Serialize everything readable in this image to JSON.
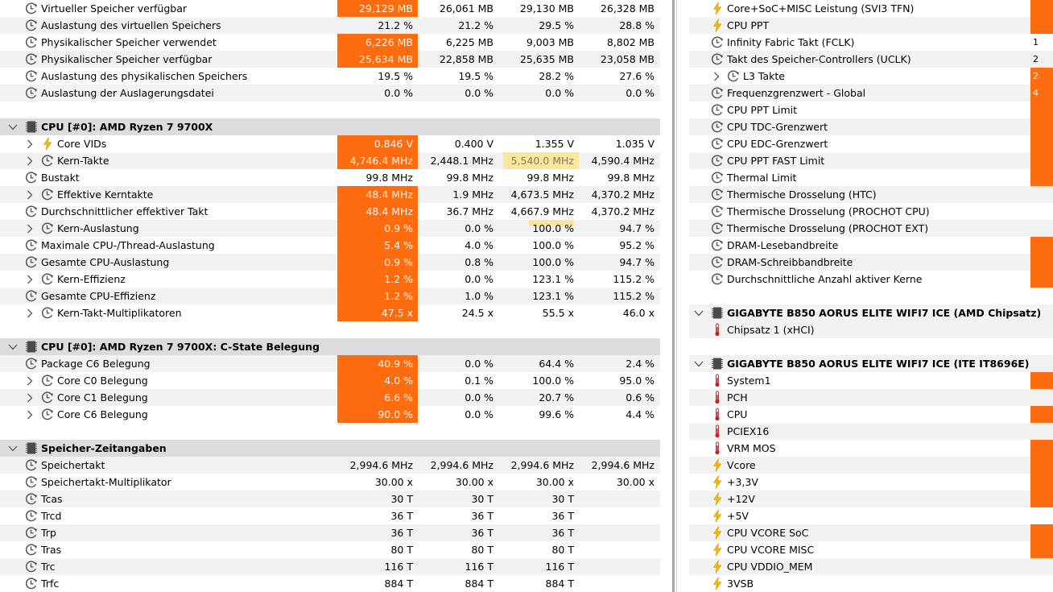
{
  "left": {
    "rows": [
      {
        "type": "row",
        "icon": "clock",
        "label": "Virtueller Speicher verfügbar",
        "vals": [
          "29,129 MB",
          "26,061 MB",
          "29,130 MB",
          "26,328 MB"
        ],
        "orange": true
      },
      {
        "type": "row",
        "icon": "clock",
        "label": "Auslastung des virtuellen Speichers",
        "vals": [
          "21.2 %",
          "21.2 %",
          "29.5 %",
          "28.8 %"
        ],
        "orange": false
      },
      {
        "type": "row",
        "icon": "clock",
        "label": "Physikalischer Speicher verwendet",
        "vals": [
          "6,226 MB",
          "6,225 MB",
          "9,003 MB",
          "8,802 MB"
        ],
        "orange": true
      },
      {
        "type": "row",
        "icon": "clock",
        "label": "Physikalischer Speicher verfügbar",
        "vals": [
          "25,634 MB",
          "22,858 MB",
          "25,635 MB",
          "23,058 MB"
        ],
        "orange": true
      },
      {
        "type": "row",
        "icon": "clock",
        "label": "Auslastung des physikalischen Speichers",
        "vals": [
          "19.5 %",
          "19.5 %",
          "28.2 %",
          "27.6 %"
        ],
        "orange": false
      },
      {
        "type": "row",
        "icon": "clock",
        "label": "Auslastung der Auslagerungsdatei",
        "vals": [
          "0.0 %",
          "0.0 %",
          "0.0 %",
          "0.0 %"
        ],
        "orange": false
      },
      {
        "type": "blank"
      },
      {
        "type": "header",
        "label": "CPU [#0]: AMD Ryzen 7 9700X"
      },
      {
        "type": "row",
        "expand": true,
        "icon": "bolt",
        "label": "Core VIDs",
        "vals": [
          "0.846 V",
          "0.400 V",
          "1.355 V",
          "1.035 V"
        ],
        "orange": true
      },
      {
        "type": "row",
        "expand": true,
        "icon": "clock",
        "label": "Kern-Takte",
        "vals": [
          "4,746.4 MHz",
          "2,448.1 MHz",
          "5,540.0 MHz",
          "4,590.4 MHz"
        ],
        "orange": true,
        "hl": "full"
      },
      {
        "type": "row",
        "icon": "clock",
        "label": "Bustakt",
        "vals": [
          "99.8 MHz",
          "99.8 MHz",
          "99.8 MHz",
          "99.8 MHz"
        ],
        "orange": false
      },
      {
        "type": "row",
        "expand": true,
        "icon": "clock",
        "label": "Effektive Kerntakte",
        "vals": [
          "48.4 MHz",
          "1.9 MHz",
          "4,673.5 MHz",
          "4,370.2 MHz"
        ],
        "orange": true
      },
      {
        "type": "row",
        "icon": "clock",
        "label": "Durchschnittlicher effektiver Takt",
        "vals": [
          "48.4 MHz",
          "36.7 MHz",
          "4,667.9 MHz",
          "4,370.2 MHz"
        ],
        "orange": true
      },
      {
        "type": "row",
        "expand": true,
        "icon": "clock",
        "label": "Kern-Auslastung",
        "vals": [
          "0.9 %",
          "0.0 %",
          "100.0 %",
          "94.7 %"
        ],
        "orange": true,
        "hl": "under"
      },
      {
        "type": "row",
        "icon": "clock",
        "label": "Maximale CPU-/Thread-Auslastung",
        "vals": [
          "5.4 %",
          "4.0 %",
          "100.0 %",
          "95.2 %"
        ],
        "orange": true
      },
      {
        "type": "row",
        "icon": "clock",
        "label": "Gesamte CPU-Auslastung",
        "vals": [
          "0.9 %",
          "0.8 %",
          "100.0 %",
          "94.7 %"
        ],
        "orange": true
      },
      {
        "type": "row",
        "expand": true,
        "icon": "clock",
        "label": "Kern-Effizienz",
        "vals": [
          "1.2 %",
          "0.0 %",
          "123.1 %",
          "115.2 %"
        ],
        "orange": true
      },
      {
        "type": "row",
        "icon": "clock",
        "label": "Gesamte CPU-Effizienz",
        "vals": [
          "1.2 %",
          "1.0 %",
          "123.1 %",
          "115.2 %"
        ],
        "orange": true
      },
      {
        "type": "row",
        "expand": true,
        "icon": "clock",
        "label": "Kern-Takt-Multiplikatoren",
        "vals": [
          "47.5 x",
          "24.5 x",
          "55.5 x",
          "46.0 x"
        ],
        "orange": true
      },
      {
        "type": "blank"
      },
      {
        "type": "header",
        "label": "CPU [#0]: AMD Ryzen 7 9700X: C-State Belegung"
      },
      {
        "type": "row",
        "icon": "clock",
        "label": "Package C6 Belegung",
        "vals": [
          "40.9 %",
          "0.0 %",
          "64.4 %",
          "2.4 %"
        ],
        "orange": true
      },
      {
        "type": "row",
        "expand": true,
        "icon": "clock",
        "label": "Core C0 Belegung",
        "vals": [
          "4.0 %",
          "0.1 %",
          "100.0 %",
          "95.0 %"
        ],
        "orange": true
      },
      {
        "type": "row",
        "expand": true,
        "icon": "clock",
        "label": "Core C1 Belegung",
        "vals": [
          "6.6 %",
          "0.0 %",
          "20.7 %",
          "0.6 %"
        ],
        "orange": true
      },
      {
        "type": "row",
        "expand": true,
        "icon": "clock",
        "label": "Core C6 Belegung",
        "vals": [
          "90.0 %",
          "0.0 %",
          "99.6 %",
          "4.4 %"
        ],
        "orange": true
      },
      {
        "type": "blank"
      },
      {
        "type": "header",
        "label": "Speicher-Zeitangaben"
      },
      {
        "type": "row",
        "icon": "clock",
        "label": "Speichertakt",
        "vals": [
          "2,994.6 MHz",
          "2,994.6 MHz",
          "2,994.6 MHz",
          "2,994.6 MHz"
        ],
        "orange": false
      },
      {
        "type": "row",
        "icon": "clock",
        "label": "Speichertakt-Multiplikator",
        "vals": [
          "30.00 x",
          "30.00 x",
          "30.00 x",
          "30.00 x"
        ],
        "orange": false
      },
      {
        "type": "row",
        "icon": "clock",
        "label": "Tcas",
        "vals": [
          "30 T",
          "30 T",
          "30 T",
          ""
        ],
        "orange": false
      },
      {
        "type": "row",
        "icon": "clock",
        "label": "Trcd",
        "vals": [
          "36 T",
          "36 T",
          "36 T",
          ""
        ],
        "orange": false
      },
      {
        "type": "row",
        "icon": "clock",
        "label": "Trp",
        "vals": [
          "36 T",
          "36 T",
          "36 T",
          ""
        ],
        "orange": false
      },
      {
        "type": "row",
        "icon": "clock",
        "label": "Tras",
        "vals": [
          "80 T",
          "80 T",
          "80 T",
          ""
        ],
        "orange": false
      },
      {
        "type": "row",
        "icon": "clock",
        "label": "Trc",
        "vals": [
          "116 T",
          "116 T",
          "116 T",
          ""
        ],
        "orange": false
      },
      {
        "type": "row",
        "icon": "clock",
        "label": "Trfc",
        "vals": [
          "884 T",
          "884 T",
          "884 T",
          ""
        ],
        "orange": false
      }
    ]
  },
  "right": {
    "rows": [
      {
        "type": "row",
        "icon": "bolt",
        "label": "Core+SoC+MISC Leistung (SVI3 TFN)",
        "val": "",
        "orange": true
      },
      {
        "type": "row",
        "icon": "bolt",
        "label": "CPU PPT",
        "val": "",
        "orange": true
      },
      {
        "type": "row",
        "icon": "clock",
        "label": "Infinity Fabric Takt (FCLK)",
        "val": "1",
        "orange": false
      },
      {
        "type": "row",
        "icon": "clock",
        "label": "Takt des Speicher-Controllers (UCLK)",
        "val": "2",
        "orange": false
      },
      {
        "type": "row",
        "expand": true,
        "icon": "clock",
        "label": "L3 Takte",
        "val": "2",
        "orange": true
      },
      {
        "type": "row",
        "icon": "clock",
        "label": "Frequenzgrenzwert - Global",
        "val": "4",
        "orange": true
      },
      {
        "type": "row",
        "icon": "clock",
        "label": "CPU PPT Limit",
        "val": "",
        "orange": true
      },
      {
        "type": "row",
        "icon": "clock",
        "label": "CPU TDC-Grenzwert",
        "val": "",
        "orange": true
      },
      {
        "type": "row",
        "icon": "clock",
        "label": "CPU EDC-Grenzwert",
        "val": "",
        "orange": true
      },
      {
        "type": "row",
        "icon": "clock",
        "label": "CPU PPT FAST Limit",
        "val": "",
        "orange": true
      },
      {
        "type": "row",
        "icon": "clock",
        "label": "Thermal Limit",
        "val": "",
        "orange": true
      },
      {
        "type": "row",
        "icon": "clock",
        "label": "Thermische Drosselung (HTC)",
        "val": "",
        "orange": false
      },
      {
        "type": "row",
        "icon": "clock",
        "label": "Thermische Drosselung (PROCHOT CPU)",
        "val": "",
        "orange": false
      },
      {
        "type": "row",
        "icon": "clock",
        "label": "Thermische Drosselung (PROCHOT EXT)",
        "val": "",
        "orange": false
      },
      {
        "type": "row",
        "icon": "clock",
        "label": "DRAM-Lesebandbreite",
        "val": "",
        "orange": true
      },
      {
        "type": "row",
        "icon": "clock",
        "label": "DRAM-Schreibbandbreite",
        "val": "",
        "orange": true
      },
      {
        "type": "row",
        "icon": "clock",
        "label": "Durchschnittliche Anzahl aktiver Kerne",
        "val": "",
        "orange": true
      },
      {
        "type": "blank"
      },
      {
        "type": "header",
        "label": "GIGABYTE B850 AORUS ELITE WIFI7 ICE (AMD Chipsatz)"
      },
      {
        "type": "row",
        "icon": "thermo",
        "label": "Chipsatz 1 (xHCI)",
        "val": "",
        "orange": false
      },
      {
        "type": "blank"
      },
      {
        "type": "header",
        "label": "GIGABYTE B850 AORUS ELITE WIFI7 ICE (ITE IT8696E)"
      },
      {
        "type": "row",
        "icon": "thermo",
        "label": "System1",
        "val": "",
        "orange": true
      },
      {
        "type": "row",
        "icon": "thermo",
        "label": "PCH",
        "val": "",
        "orange": false
      },
      {
        "type": "row",
        "icon": "thermo",
        "label": "CPU",
        "val": "",
        "orange": true
      },
      {
        "type": "row",
        "icon": "thermo",
        "label": "PCIEX16",
        "val": "",
        "orange": false
      },
      {
        "type": "row",
        "icon": "thermo",
        "label": "VRM MOS",
        "val": "",
        "orange": true
      },
      {
        "type": "row",
        "icon": "bolt",
        "label": "Vcore",
        "val": "",
        "orange": true
      },
      {
        "type": "row",
        "icon": "bolt",
        "label": "+3,3V",
        "val": "",
        "orange": true
      },
      {
        "type": "row",
        "icon": "bolt",
        "label": "+12V",
        "val": "",
        "orange": true
      },
      {
        "type": "row",
        "icon": "bolt",
        "label": "+5V",
        "val": "",
        "orange": false
      },
      {
        "type": "row",
        "icon": "bolt",
        "label": "CPU VCORE SoC",
        "val": "",
        "orange": true
      },
      {
        "type": "row",
        "icon": "bolt",
        "label": "CPU VCORE MISC",
        "val": "",
        "orange": true
      },
      {
        "type": "row",
        "icon": "bolt",
        "label": "CPU VDDIO_MEM",
        "val": "",
        "orange": false
      },
      {
        "type": "row",
        "icon": "bolt",
        "label": "3VSB",
        "val": "",
        "orange": false
      }
    ]
  },
  "colors": {
    "orange": "#ff6c0f",
    "highlight": "#fbe6a0",
    "header_bg": "#dcdcdc",
    "alt_bg": "#f2f2f2"
  }
}
